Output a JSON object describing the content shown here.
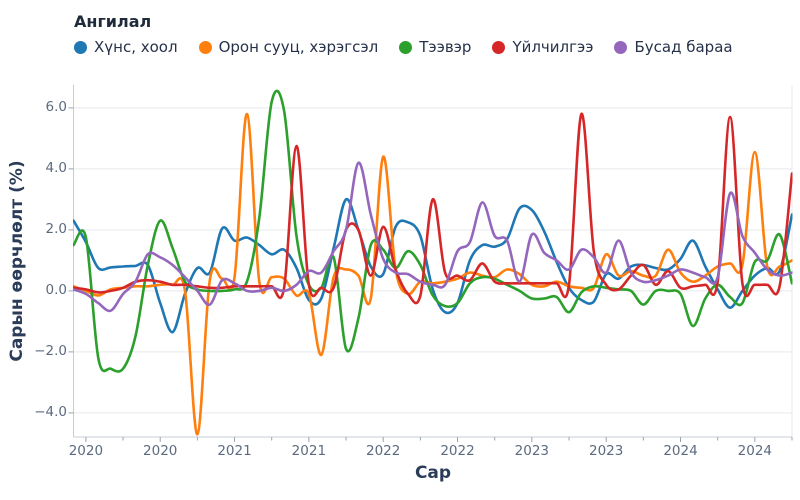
{
  "legend": {
    "title": "Ангилал",
    "items": [
      {
        "label": "Хүнс, хоол",
        "color": "#1f77b4"
      },
      {
        "label": "Орон сууц, хэрэгсэл",
        "color": "#ff7f0e"
      },
      {
        "label": "Тээвэр",
        "color": "#2ca02c"
      },
      {
        "label": "Үйлчилгээ",
        "color": "#d62728"
      },
      {
        "label": "Бусад бараа",
        "color": "#9467bd"
      }
    ]
  },
  "axes": {
    "x_title": "Сар",
    "y_title": "Сарын өөрчлөлт (%)",
    "x_tick_labels": [
      "2020",
      "2020",
      "2021",
      "2021",
      "2022",
      "2022",
      "2023",
      "2023",
      "2024",
      "2024"
    ],
    "x_tick_month_indices": [
      1,
      7,
      13,
      19,
      25,
      31,
      37,
      43,
      49,
      55
    ],
    "x_minor_tick_month_indices": [
      4,
      10,
      16,
      22,
      28,
      34,
      40,
      46,
      52,
      58
    ],
    "y_tick_labels": [
      "6.0",
      "4.0",
      "2.0",
      "0.0",
      "−2.0",
      "−4.0"
    ],
    "y_tick_values": [
      6,
      4,
      2,
      0,
      -2,
      -4
    ],
    "grid_color": "#e8e9ec",
    "spine_color": "#c7ccd6",
    "tick_color": "#9aa3b0"
  },
  "chart_data": {
    "type": "line",
    "line_shape": "spline",
    "title": "",
    "xlabel": "Сар",
    "ylabel": "Сарын өөрчлөлт (%)",
    "legend_title": "Ангилал",
    "legend_position": "top-left",
    "grid": "horizontal-major-only",
    "ylim": [
      -4.79,
      6.75
    ],
    "x": [
      "2019-12",
      "2020-01",
      "2020-02",
      "2020-03",
      "2020-04",
      "2020-05",
      "2020-06",
      "2020-07",
      "2020-08",
      "2020-09",
      "2020-10",
      "2020-11",
      "2020-12",
      "2021-01",
      "2021-02",
      "2021-03",
      "2021-04",
      "2021-05",
      "2021-06",
      "2021-07",
      "2021-08",
      "2021-09",
      "2021-10",
      "2021-11",
      "2021-12",
      "2022-01",
      "2022-02",
      "2022-03",
      "2022-04",
      "2022-05",
      "2022-06",
      "2022-07",
      "2022-08",
      "2022-09",
      "2022-10",
      "2022-11",
      "2022-12",
      "2023-01",
      "2023-02",
      "2023-03",
      "2023-04",
      "2023-05",
      "2023-06",
      "2023-07",
      "2023-08",
      "2023-09",
      "2023-10",
      "2023-11",
      "2023-12",
      "2024-01",
      "2024-02",
      "2024-03",
      "2024-04",
      "2024-05",
      "2024-06",
      "2024-07",
      "2024-08",
      "2024-09",
      "2024-10"
    ],
    "series": [
      {
        "name": "Хүнс, хоол",
        "color": "#1f77b4",
        "values": [
          2.3,
          1.6,
          0.75,
          0.77,
          0.8,
          0.82,
          0.85,
          -0.4,
          -1.35,
          -0.1,
          0.75,
          0.6,
          2.05,
          1.65,
          1.75,
          1.5,
          1.2,
          1.35,
          0.75,
          -0.3,
          -0.25,
          1.4,
          3.0,
          2.0,
          0.8,
          0.55,
          2.1,
          2.25,
          1.8,
          0.05,
          -0.7,
          -0.4,
          1.0,
          1.5,
          1.45,
          1.7,
          2.7,
          2.65,
          1.95,
          0.95,
          0.1,
          -0.3,
          -0.35,
          0.55,
          0.4,
          0.8,
          0.85,
          0.75,
          0.7,
          1.05,
          1.65,
          0.8,
          0.05,
          -0.55,
          0.0,
          0.5,
          0.75,
          0.65,
          2.5
        ]
      },
      {
        "name": "Орон сууц, хэрэгсэл",
        "color": "#ff7f0e",
        "values": [
          0.15,
          0.0,
          -0.15,
          0.05,
          0.1,
          0.15,
          0.15,
          0.2,
          0.2,
          0.0,
          -4.7,
          0.35,
          0.4,
          0.45,
          5.8,
          0.3,
          0.45,
          0.4,
          -0.15,
          -0.1,
          -2.1,
          0.45,
          0.7,
          0.5,
          -0.25,
          4.4,
          0.7,
          -0.1,
          0.3,
          0.25,
          0.3,
          0.4,
          0.6,
          0.5,
          0.45,
          0.7,
          0.55,
          0.2,
          0.15,
          0.3,
          0.15,
          0.1,
          0.1,
          1.2,
          0.5,
          0.65,
          0.5,
          0.5,
          1.35,
          0.6,
          0.3,
          0.5,
          0.8,
          0.9,
          0.85,
          4.55,
          0.8,
          0.8,
          1.0
        ]
      },
      {
        "name": "Тээвэр",
        "color": "#2ca02c",
        "values": [
          1.5,
          1.75,
          -2.2,
          -2.55,
          -2.55,
          -1.5,
          0.85,
          2.3,
          1.4,
          0.3,
          0.05,
          0.0,
          0.0,
          0.05,
          0.3,
          2.4,
          6.2,
          5.9,
          1.8,
          0.2,
          0.1,
          1.1,
          -1.9,
          -0.9,
          1.5,
          1.35,
          0.75,
          1.3,
          0.85,
          -0.15,
          -0.5,
          -0.4,
          0.25,
          0.45,
          0.4,
          0.2,
          0.0,
          -0.25,
          -0.25,
          -0.2,
          -0.7,
          -0.05,
          0.15,
          0.1,
          0.05,
          0.0,
          -0.45,
          0.0,
          0.0,
          -0.1,
          -1.15,
          -0.25,
          0.2,
          -0.2,
          -0.4,
          0.95,
          1.0,
          1.85,
          0.25
        ]
      },
      {
        "name": "Үйлчилгээ",
        "color": "#d62728",
        "values": [
          0.1,
          0.05,
          -0.05,
          0.0,
          0.1,
          0.3,
          0.35,
          0.3,
          0.2,
          0.2,
          0.15,
          0.1,
          0.1,
          0.15,
          0.15,
          0.15,
          0.15,
          0.1,
          4.75,
          0.2,
          0.1,
          0.1,
          2.0,
          2.0,
          0.5,
          2.1,
          0.7,
          -0.1,
          -0.15,
          3.0,
          0.6,
          0.5,
          0.35,
          0.9,
          0.3,
          0.25,
          0.25,
          0.25,
          0.25,
          0.25,
          0.2,
          5.8,
          1.3,
          0.2,
          0.05,
          0.5,
          0.85,
          0.2,
          0.65,
          0.1,
          0.15,
          0.2,
          0.3,
          5.7,
          0.25,
          0.2,
          0.2,
          0.15,
          3.85
        ]
      },
      {
        "name": "Бусад бараа",
        "color": "#9467bd",
        "values": [
          0.05,
          -0.1,
          -0.4,
          -0.65,
          -0.1,
          0.3,
          1.2,
          1.1,
          0.85,
          0.45,
          0.0,
          -0.45,
          0.35,
          0.25,
          0.0,
          0.0,
          0.1,
          0.0,
          0.2,
          0.65,
          0.6,
          1.3,
          2.0,
          4.2,
          2.5,
          1.05,
          0.6,
          0.55,
          0.3,
          0.2,
          0.2,
          1.3,
          1.6,
          2.9,
          1.8,
          1.65,
          0.3,
          1.85,
          1.25,
          1.0,
          0.7,
          1.35,
          1.1,
          0.6,
          1.65,
          0.6,
          0.3,
          0.35,
          0.5,
          0.7,
          0.6,
          0.45,
          0.45,
          3.2,
          1.8,
          1.25,
          0.7,
          0.5,
          0.6
        ]
      }
    ]
  }
}
